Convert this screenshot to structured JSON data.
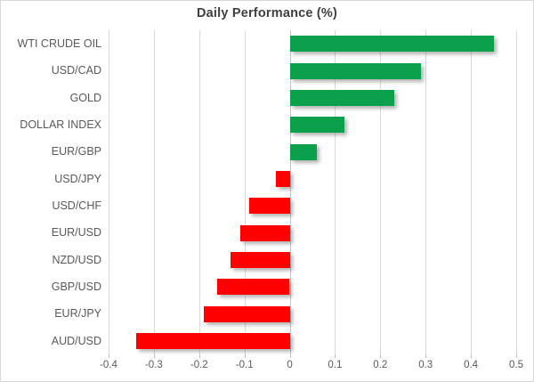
{
  "chart_data": {
    "type": "bar",
    "orientation": "horizontal",
    "title": "Daily Performance (%)",
    "categories": [
      "WTI CRUDE OIL",
      "USD/CAD",
      "GOLD",
      "DOLLAR INDEX",
      "EUR/GBP",
      "USD/JPY",
      "USD/CHF",
      "EUR/USD",
      "NZD/USD",
      "GBP/USD",
      "EUR/JPY",
      "AUD/USD"
    ],
    "values": [
      0.45,
      0.29,
      0.23,
      0.12,
      0.06,
      -0.03,
      -0.09,
      -0.11,
      -0.13,
      -0.16,
      -0.19,
      -0.34
    ],
    "xlim": [
      -0.4,
      0.5
    ],
    "x_ticks": [
      -0.4,
      -0.3,
      -0.2,
      -0.1,
      0,
      0.1,
      0.2,
      0.3,
      0.4,
      0.5
    ],
    "x_tick_labels": [
      "-0.4",
      "-0.3",
      "-0.2",
      "-0.1",
      "0",
      "0.1",
      "0.2",
      "0.3",
      "0.4",
      "0.5"
    ],
    "grid": true,
    "legend": false,
    "positive_color": "#0ba14c",
    "negative_color": "#fe0000",
    "gridline_color": "#d9d9d9",
    "axis_label_color": "#595959",
    "title_color": "#3f3f3f"
  }
}
